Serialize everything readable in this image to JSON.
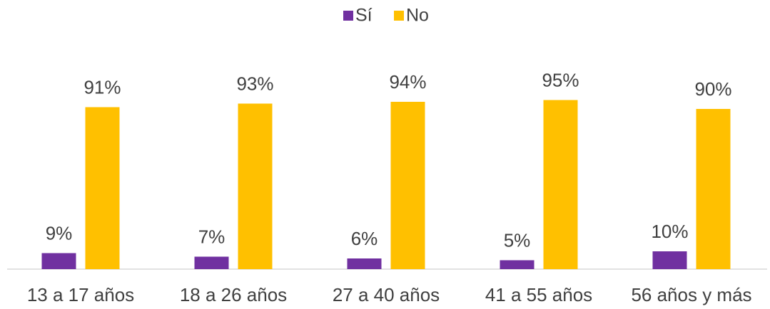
{
  "chart_data": {
    "type": "bar",
    "categories": [
      "13 a 17 años",
      "18 a 26 años",
      "27 a 40 años",
      "41 a 55 años",
      "56 años y más"
    ],
    "series": [
      {
        "name": "Sí",
        "color": "#7030a0",
        "values": [
          9,
          7,
          6,
          5,
          10
        ],
        "value_labels": [
          "9%",
          "7%",
          "6%",
          "5%",
          "10%"
        ]
      },
      {
        "name": "No",
        "color": "#ffc000",
        "values": [
          91,
          93,
          94,
          95,
          90
        ],
        "value_labels": [
          "91%",
          "93%",
          "94%",
          "95%",
          "90%"
        ]
      }
    ],
    "legend": "top"
  }
}
